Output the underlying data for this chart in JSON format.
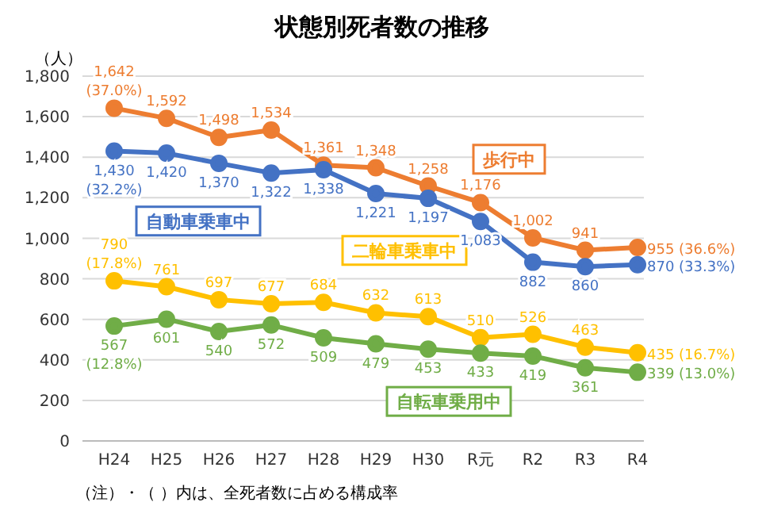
{
  "chart_data": {
    "type": "line",
    "title": "状態別死者数の推移",
    "ylabel": "（人）",
    "annotations": [
      "（注）・（ ）内は、全死者数に占める構成率"
    ],
    "categories": [
      "H24",
      "H25",
      "H26",
      "H27",
      "H28",
      "H29",
      "H30",
      "R元",
      "R2",
      "R3",
      "R4"
    ],
    "series": [
      {
        "name": "歩行中",
        "color": "#ed7d31",
        "values": [
          1642,
          1592,
          1498,
          1534,
          1361,
          1348,
          1258,
          1176,
          1002,
          941,
          955
        ],
        "value_labels": [
          "1,642\n(37.0%)",
          "1,592",
          "1,498",
          "1,534",
          "1,361",
          "1,348",
          "1,258",
          "1,176",
          "1,002",
          "941",
          "955 (36.6%)"
        ]
      },
      {
        "name": "自動車乗車中",
        "color": "#4472c4",
        "values": [
          1430,
          1420,
          1370,
          1322,
          1338,
          1221,
          1197,
          1083,
          882,
          860,
          870
        ],
        "value_labels": [
          "1,430\n(32.2%)",
          "1,420",
          "1,370",
          "1,322",
          "1,338",
          "1,221",
          "1,197",
          "1,083",
          "882",
          "860",
          "870 (33.3%)"
        ]
      },
      {
        "name": "二輪車乗車中",
        "color": "#ffc000",
        "values": [
          790,
          761,
          697,
          677,
          684,
          632,
          613,
          510,
          526,
          463,
          435
        ],
        "value_labels": [
          "790\n(17.8%)",
          "761",
          "697",
          "677",
          "684",
          "632",
          "613",
          "510",
          "526",
          "463",
          "435 (16.7%)"
        ]
      },
      {
        "name": "自転車乗用中",
        "color": "#70ad47",
        "values": [
          567,
          601,
          540,
          572,
          509,
          479,
          453,
          433,
          419,
          361,
          339
        ],
        "value_labels": [
          "567\n(12.8%)",
          "601",
          "540",
          "572",
          "509",
          "479",
          "453",
          "433",
          "419",
          "361",
          "339 (13.0%)"
        ]
      }
    ],
    "ylim": [
      0,
      1800
    ],
    "yticks": [
      0,
      200,
      400,
      600,
      800,
      {
        "value": 1000,
        "label": "1,000"
      },
      {
        "value": 1200,
        "label": "1,200"
      },
      {
        "value": 1400,
        "label": "1,400"
      },
      {
        "value": 1600,
        "label": "1,600"
      },
      {
        "value": 1800,
        "label": "1,800"
      }
    ],
    "grid": "y",
    "legend": false,
    "marker": "circle",
    "line_style": "solid"
  }
}
